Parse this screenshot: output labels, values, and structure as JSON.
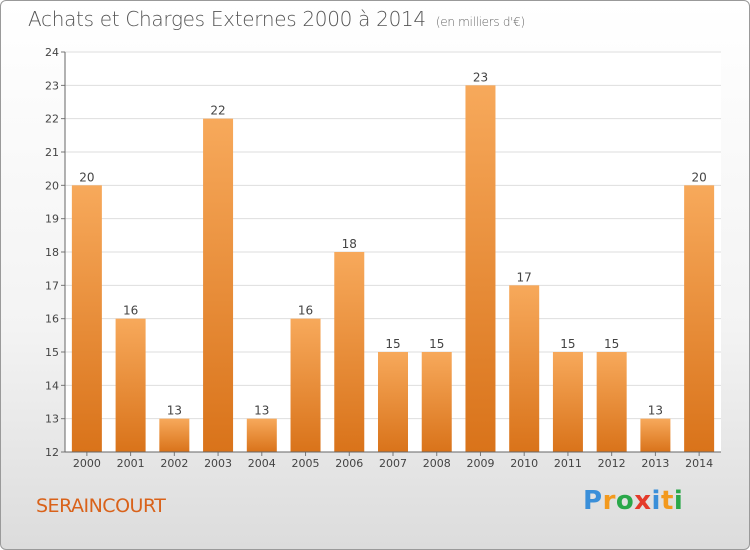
{
  "header": {
    "title": "Achats et Charges Externes 2000 à 2014",
    "unit": "(en milliers d'€)"
  },
  "footer": {
    "commune": "SERAINCOURT",
    "logo_letters": [
      "P",
      "r",
      "o",
      "x",
      "i",
      "t",
      "i"
    ],
    "logo_colors": [
      "#3a8fd9",
      "#f39a1e",
      "#2aa84a",
      "#e43a2a",
      "#3a8fd9",
      "#f39a1e",
      "#2aa84a"
    ]
  },
  "colors": {
    "bar_top": "#f7a95b",
    "bar_bottom": "#d9731a",
    "commune": "#d9621a"
  },
  "chart_data": {
    "type": "bar",
    "categories": [
      "2000",
      "2001",
      "2002",
      "2003",
      "2004",
      "2005",
      "2006",
      "2007",
      "2008",
      "2009",
      "2010",
      "2011",
      "2012",
      "2013",
      "2014"
    ],
    "values": [
      20,
      16,
      13,
      22,
      13,
      16,
      18,
      15,
      15,
      23,
      17,
      15,
      15,
      13,
      20
    ],
    "title": "Achats et Charges Externes 2000 à 2014",
    "ylim": [
      12,
      24
    ],
    "yticks": [
      12,
      13,
      14,
      15,
      16,
      17,
      18,
      19,
      20,
      21,
      22,
      23,
      24
    ],
    "grid": true
  }
}
